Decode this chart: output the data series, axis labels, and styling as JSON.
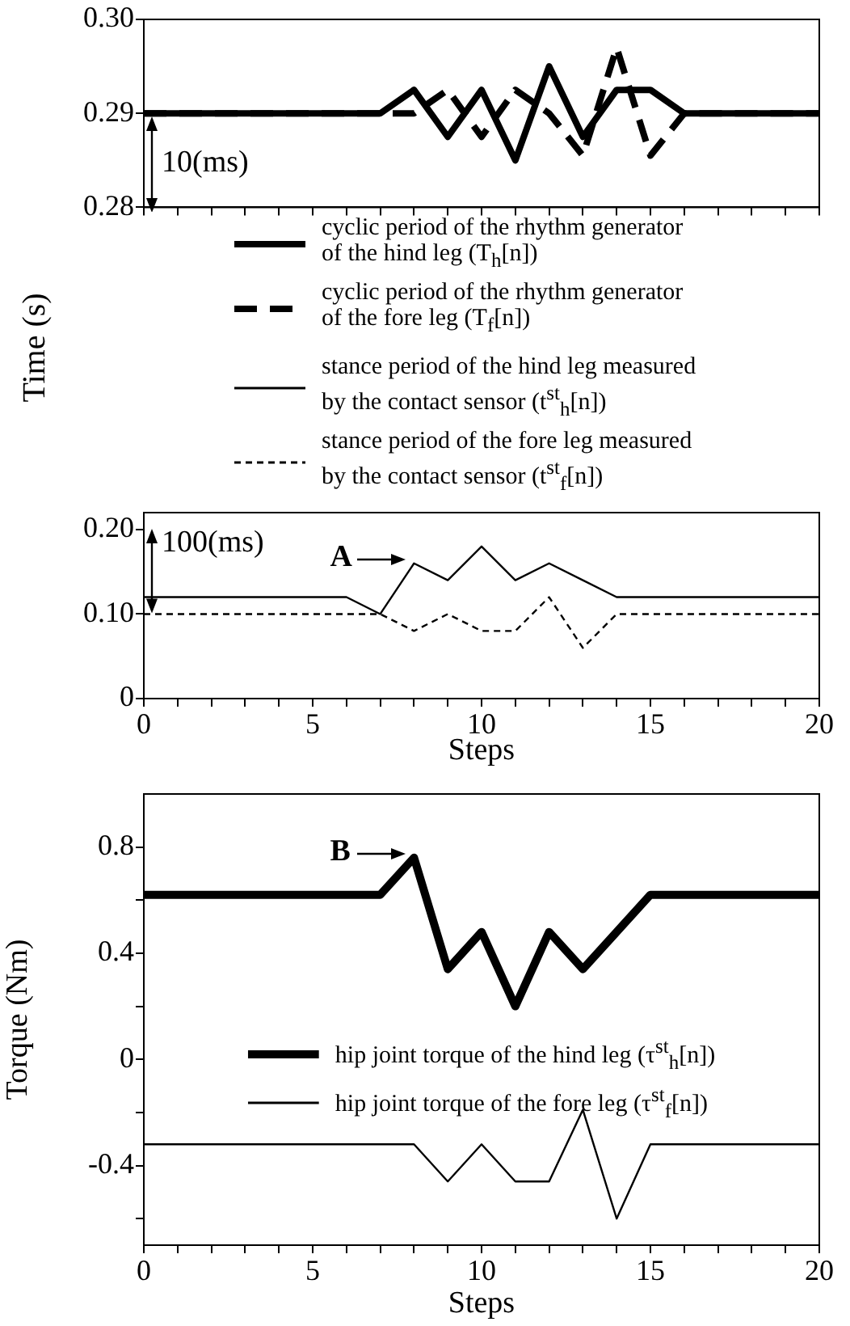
{
  "chart_data": [
    {
      "type": "line",
      "ylabel": "Time (s)",
      "x": [
        0,
        1,
        2,
        3,
        4,
        5,
        6,
        7,
        8,
        9,
        10,
        11,
        12,
        13,
        14,
        15,
        16,
        17,
        18,
        19,
        20
      ],
      "xlim": [
        0,
        20
      ],
      "xticks": [
        0,
        1,
        2,
        3,
        4,
        5,
        6,
        7,
        8,
        9,
        10,
        11,
        12,
        13,
        14,
        15,
        16,
        17,
        18,
        19,
        20
      ],
      "ylim": [
        0.28,
        0.3
      ],
      "yticks": [
        0.28,
        0.29,
        {
          "value": 0.3,
          "label": "0.30"
        }
      ],
      "tick_labels": "y",
      "legend": "bottom",
      "line_style": "solid",
      "annotations": [
        "10(ms)"
      ],
      "series": [
        {
          "name": "cyclic period of the rhythm generator of the hind leg (T$_{h}$[n])",
          "color": "#000000",
          "values": [
            0.29,
            0.29,
            0.29,
            0.29,
            0.29,
            0.29,
            0.29,
            0.29,
            0.2925,
            0.2875,
            0.2925,
            0.285,
            0.295,
            0.2875,
            0.2925,
            0.2925,
            0.29,
            0.29,
            0.29,
            0.29,
            0.29
          ]
        },
        {
          "name": "cyclic period of the rhythm generator of the fore leg (T$_{f}$[n])",
          "color": "#000000",
          "line_style": "dashed",
          "values": [
            0.29,
            0.29,
            0.29,
            0.29,
            0.29,
            0.29,
            0.29,
            0.29,
            0.29,
            0.2925,
            0.2875,
            0.2925,
            0.29,
            0.2855,
            0.297,
            0.2855,
            0.29,
            0.29,
            0.29,
            0.29,
            0.29
          ]
        }
      ]
    },
    {
      "type": "line",
      "xlabel": "Steps",
      "x": [
        0,
        1,
        2,
        3,
        4,
        5,
        6,
        7,
        8,
        9,
        10,
        11,
        12,
        13,
        14,
        15,
        16,
        17,
        18,
        19,
        20
      ],
      "xlim": [
        0,
        20
      ],
      "xticks": [
        0,
        {
          "value": 1,
          "label": null
        },
        {
          "value": 2,
          "label": null
        },
        {
          "value": 3,
          "label": null
        },
        {
          "value": 4,
          "label": null
        },
        5,
        {
          "value": 6,
          "label": null
        },
        {
          "value": 7,
          "label": null
        },
        {
          "value": 8,
          "label": null
        },
        {
          "value": 9,
          "label": null
        },
        10,
        {
          "value": 11,
          "label": null
        },
        {
          "value": 12,
          "label": null
        },
        {
          "value": 13,
          "label": null
        },
        {
          "value": 14,
          "label": null
        },
        15,
        {
          "value": 16,
          "label": null
        },
        {
          "value": 17,
          "label": null
        },
        {
          "value": 18,
          "label": null
        },
        {
          "value": 19,
          "label": null
        },
        20
      ],
      "ylim": [
        0,
        0.22
      ],
      "yticks": [
        0,
        {
          "value": 0.1,
          "label": "0.10"
        },
        {
          "value": 0.2,
          "label": "0.20"
        }
      ],
      "legend": "top",
      "line_style": "solid",
      "annotations": [
        "100(ms)",
        {
          "text": "A",
          "x": 8,
          "y": 0.16
        }
      ],
      "series": [
        {
          "name": "stance period of the hind leg measured by the contact sensor (t$^{st}$$_{h}$[n])",
          "color": "#000000",
          "values": [
            0.12,
            0.12,
            0.12,
            0.12,
            0.12,
            0.12,
            0.12,
            0.1,
            0.16,
            0.14,
            0.18,
            0.14,
            0.16,
            0.14,
            0.12,
            0.12,
            0.12,
            0.12,
            0.12,
            0.12,
            0.12
          ]
        },
        {
          "name": "stance period of the fore leg measured by the contact sensor (t$^{st}$$_{f}$[n])",
          "color": "#000000",
          "line_style": "dashed",
          "values": [
            0.1,
            0.1,
            0.1,
            0.1,
            0.1,
            0.1,
            0.1,
            0.1,
            0.08,
            0.1,
            0.08,
            0.08,
            0.12,
            0.06,
            0.1,
            0.1,
            0.1,
            0.1,
            0.1,
            0.1,
            0.1
          ]
        }
      ]
    },
    {
      "type": "line",
      "xlabel": "Steps",
      "ylabel": "Torque (Nm)",
      "x": [
        0,
        1,
        2,
        3,
        4,
        5,
        6,
        7,
        8,
        9,
        10,
        11,
        12,
        13,
        14,
        15,
        16,
        17,
        18,
        19,
        20
      ],
      "xlim": [
        0,
        20
      ],
      "xticks": [
        0,
        {
          "value": 1,
          "label": null
        },
        {
          "value": 2,
          "label": null
        },
        {
          "value": 3,
          "label": null
        },
        {
          "value": 4,
          "label": null
        },
        5,
        {
          "value": 6,
          "label": null
        },
        {
          "value": 7,
          "label": null
        },
        {
          "value": 8,
          "label": null
        },
        {
          "value": 9,
          "label": null
        },
        10,
        {
          "value": 11,
          "label": null
        },
        {
          "value": 12,
          "label": null
        },
        {
          "value": 13,
          "label": null
        },
        {
          "value": 14,
          "label": null
        },
        15,
        {
          "value": 16,
          "label": null
        },
        {
          "value": 17,
          "label": null
        },
        {
          "value": 18,
          "label": null
        },
        {
          "value": 19,
          "label": null
        },
        20
      ],
      "ylim": [
        -0.7,
        1.0
      ],
      "yticks": [
        {
          "value": -0.6,
          "label": null
        },
        -0.4,
        {
          "value": -0.2,
          "label": null
        },
        0,
        {
          "value": 0.2,
          "label": null
        },
        0.4,
        {
          "value": 0.6,
          "label": null
        },
        0.8
      ],
      "legend": "center",
      "line_style": "solid",
      "annotations": [
        {
          "text": "B",
          "x": 8,
          "y": 0.76
        }
      ],
      "series": [
        {
          "name": "hip joint torque of the hind leg (τ$^{st}$$_{h}$[n])",
          "color": "#000000",
          "values": [
            0.62,
            0.62,
            0.62,
            0.62,
            0.62,
            0.62,
            0.62,
            0.62,
            0.76,
            0.34,
            0.48,
            0.2,
            0.48,
            0.34,
            0.48,
            0.62,
            0.62,
            0.62,
            0.62,
            0.62,
            0.62
          ]
        },
        {
          "name": "hip joint torque of the fore leg (τ$^{st}$$_{f}$[n])",
          "color": "#000000",
          "values": [
            -0.32,
            -0.32,
            -0.32,
            -0.32,
            -0.32,
            -0.32,
            -0.32,
            -0.32,
            -0.32,
            -0.46,
            -0.32,
            -0.46,
            -0.46,
            -0.19,
            -0.6,
            -0.32,
            -0.32,
            -0.32,
            -0.32,
            -0.32,
            -0.32
          ]
        }
      ]
    }
  ]
}
